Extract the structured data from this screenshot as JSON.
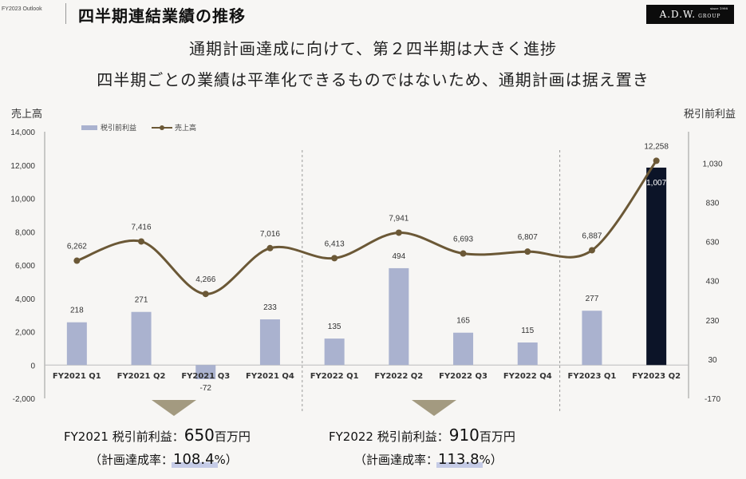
{
  "header": {
    "fy_tag": "FY2023 Outlook",
    "title": "四半期連結業績の推移",
    "logo_text": "A.D.W.",
    "logo_sub": "GROUP",
    "logo_since": "since 1998"
  },
  "headline": {
    "line1": "通期計画達成に向けて、第２四半期は大きく進捗",
    "line2": "四半期ごとの業績は平準化できるものではないため、通期計画は据え置き"
  },
  "summary": [
    {
      "label": "FY2021 税引前利益：",
      "value": "650",
      "unit": "百万円",
      "rate_prefix": "（計画達成率：",
      "rate": "108.4",
      "rate_suffix": "%）"
    },
    {
      "label": "FY2022 税引前利益：",
      "value": "910",
      "unit": "百万円",
      "rate_prefix": "（計画達成率：",
      "rate": "113.8",
      "rate_suffix": "%）"
    }
  ],
  "colors": {
    "bar": "#aab2cf",
    "bar_highlight": "#0c1428",
    "line": "#6b5836",
    "arrow": "#a39a80"
  },
  "chart_data": {
    "type": "bar",
    "categories": [
      "FY2021 Q1",
      "FY2021 Q2",
      "FY2021 Q3",
      "FY2021 Q4",
      "FY2022 Q1",
      "FY2022 Q2",
      "FY2022 Q3",
      "FY2022 Q4",
      "FY2023 Q1",
      "FY2023 Q2"
    ],
    "series": [
      {
        "name": "税引前利益",
        "type": "bar",
        "axis": "right",
        "values": [
          218,
          271,
          -72,
          233,
          135,
          494,
          165,
          115,
          277,
          1007
        ]
      },
      {
        "name": "売上高",
        "type": "line",
        "axis": "left",
        "values": [
          6262,
          7416,
          4266,
          7016,
          6413,
          7941,
          6693,
          6807,
          6887,
          12258
        ]
      }
    ],
    "left_axis": {
      "label": "売上高",
      "ticks": [
        14000,
        12000,
        10000,
        8000,
        6000,
        4000,
        2000,
        0,
        -2000
      ],
      "tick_labels": [
        "14,000",
        "12,000",
        "10,000",
        "8,000",
        "6,000",
        "4,000",
        "2,000",
        "0",
        "-2,000"
      ],
      "ylim": [
        -2000,
        14000
      ]
    },
    "right_axis": {
      "label": "税引前利益",
      "ticks": [
        1030,
        830,
        630,
        430,
        230,
        30,
        -170
      ],
      "tick_labels": [
        "1,030",
        "830",
        "630",
        "430",
        "230",
        "30",
        "-170"
      ],
      "ylim": [
        -170,
        1190
      ]
    },
    "bar_labels": [
      "218",
      "271",
      "-72",
      "233",
      "135",
      "494",
      "165",
      "115",
      "277",
      "1,007"
    ],
    "line_labels": [
      "6,262",
      "7,416",
      "4,266",
      "7,016",
      "6,413",
      "7,941",
      "6,693",
      "6,807",
      "6,887",
      "12,258"
    ],
    "legend": {
      "placement": "top-left",
      "entries": [
        "税引前利益",
        "売上高"
      ]
    },
    "fiscal_year_separators_after": [
      "FY2021 Q4",
      "FY2022 Q4"
    ],
    "grid": false
  }
}
